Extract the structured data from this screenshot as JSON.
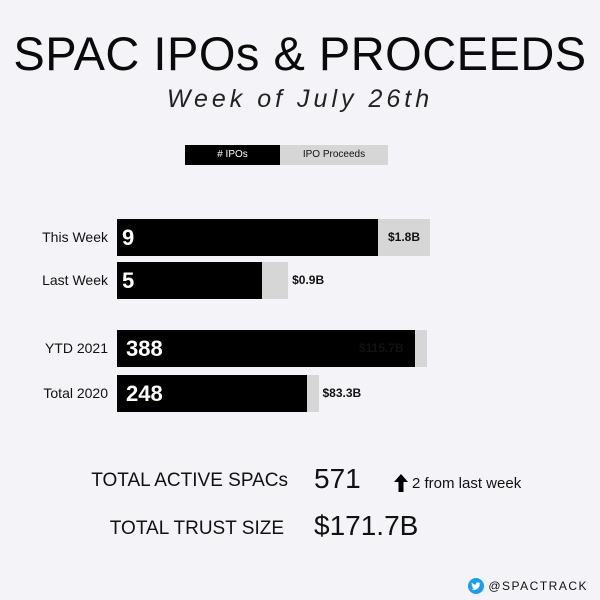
{
  "header": {
    "title": "SPAC IPOs & PROCEEDS",
    "subtitle": "Week of July 26th"
  },
  "legend": {
    "ipos": "# IPOs",
    "proceeds": "IPO Proceeds"
  },
  "chart_data": {
    "type": "bar",
    "orientation": "horizontal",
    "categories": [
      "This Week",
      "Last Week",
      "YTD 2021",
      "Total 2020"
    ],
    "series": [
      {
        "name": "# IPOs",
        "values": [
          9,
          5,
          388,
          248
        ],
        "labels": [
          "9",
          "5",
          "388",
          "248"
        ],
        "color": "#000000"
      },
      {
        "name": "IPO Proceeds",
        "values": [
          1.8,
          0.9,
          115.7,
          83.3
        ],
        "labels": [
          "$1.8B",
          "$0.9B",
          "$115.7B",
          "$83.3B"
        ],
        "color": "#d6d6d6"
      }
    ],
    "groups": [
      {
        "rows": [
          0,
          1
        ]
      },
      {
        "rows": [
          2,
          3
        ]
      }
    ]
  },
  "stats": {
    "active_label": "TOTAL ACTIVE SPACs",
    "active_value": "571",
    "active_change": "2 from last week",
    "trust_label": "TOTAL TRUST SIZE",
    "trust_value": "$171.7B"
  },
  "footer": {
    "handle": "@SPACTRACK",
    "icon": "twitter-bird-icon"
  }
}
